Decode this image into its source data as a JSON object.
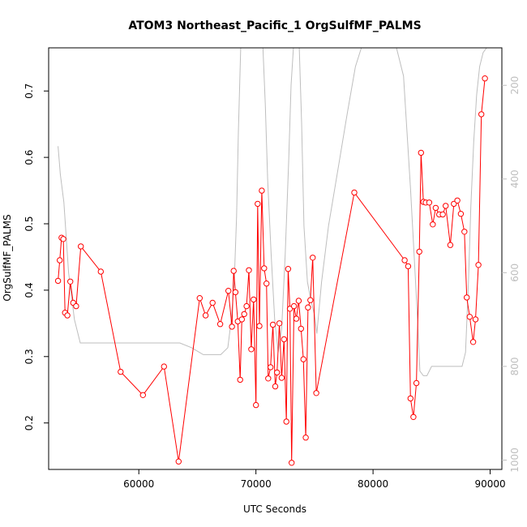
{
  "chart_data": {
    "type": "line",
    "title": "ATOM3 Northeast_Pacific_1 OrgSulfMF_PALMS",
    "xlabel": "UTC Seconds",
    "ylabel": "OrgSulfMF_PALMS",
    "xlim": [
      52300,
      91000
    ],
    "ylim": [
      0.13,
      0.765
    ],
    "x_ticks": [
      60000,
      70000,
      80000,
      90000
    ],
    "x_tick_labels": [
      "60000",
      "70000",
      "80000",
      "90000"
    ],
    "y_ticks": [
      0.2,
      0.3,
      0.4,
      0.5,
      0.6,
      0.7
    ],
    "y_tick_labels": [
      "0.2",
      "0.3",
      "0.4",
      "0.5",
      "0.6",
      "0.7"
    ],
    "y2_lim": [
      1020,
      120
    ],
    "y2_ticks": [
      200,
      400,
      600,
      800,
      1000
    ],
    "y2_tick_labels": [
      "200",
      "400",
      "600",
      "800",
      "1000"
    ],
    "grid": false,
    "colors": {
      "series": "#ff0000",
      "secondary": "#bebebe",
      "axis": "#000000"
    },
    "series": [
      {
        "marker": "open-circle",
        "color": "#ff0000",
        "x": [
          53100,
          53250,
          53400,
          53550,
          53700,
          53900,
          54150,
          54400,
          54650,
          55050,
          56750,
          58450,
          60350,
          62150,
          63400,
          65200,
          65700,
          66300,
          66950,
          67650,
          67950,
          68100,
          68250,
          68450,
          68650,
          68800,
          69000,
          69200,
          69400,
          69600,
          69800,
          70000,
          70150,
          70300,
          70500,
          70700,
          70900,
          71050,
          71250,
          71450,
          71650,
          71800,
          72000,
          72200,
          72400,
          72600,
          72750,
          72900,
          73050,
          73250,
          73450,
          73650,
          73850,
          74050,
          74250,
          74450,
          74650,
          74850,
          75150,
          78400,
          82700,
          83000,
          83200,
          83450,
          83700,
          83950,
          84100,
          84300,
          84500,
          84800,
          85100,
          85350,
          85650,
          85950,
          86200,
          86600,
          86900,
          87200,
          87500,
          87800,
          88000,
          88250,
          88550,
          88750,
          89000,
          89250,
          89550
        ],
        "values": [
          0.414,
          0.445,
          0.479,
          0.477,
          0.366,
          0.362,
          0.413,
          0.381,
          0.376,
          0.466,
          0.428,
          0.277,
          0.242,
          0.285,
          0.142,
          0.388,
          0.362,
          0.381,
          0.349,
          0.399,
          0.345,
          0.429,
          0.397,
          0.353,
          0.265,
          0.356,
          0.364,
          0.376,
          0.43,
          0.311,
          0.386,
          0.227,
          0.53,
          0.346,
          0.55,
          0.433,
          0.41,
          0.267,
          0.284,
          0.348,
          0.255,
          0.276,
          0.35,
          0.268,
          0.326,
          0.202,
          0.432,
          0.372,
          0.14,
          0.376,
          0.357,
          0.384,
          0.342,
          0.296,
          0.178,
          0.374,
          0.385,
          0.449,
          0.245,
          0.547,
          0.445,
          0.436,
          0.237,
          0.209,
          0.26,
          0.458,
          0.607,
          0.533,
          0.532,
          0.532,
          0.499,
          0.524,
          0.514,
          0.514,
          0.527,
          0.468,
          0.53,
          0.535,
          0.515,
          0.488,
          0.389,
          0.36,
          0.322,
          0.356,
          0.438,
          0.665,
          0.719
        ]
      },
      {
        "marker": "none",
        "color": "#bebebe",
        "axis": "right",
        "x": [
          53100,
          53300,
          53600,
          54000,
          54500,
          55000,
          56000,
          58000,
          60000,
          62000,
          63500,
          64500,
          65500,
          67000,
          67600,
          67900,
          68150,
          68350,
          68500,
          68700,
          68900,
          69100,
          69300,
          69600,
          69800,
          70000,
          70200,
          70400,
          70600,
          70800,
          71000,
          71300,
          71600,
          71900,
          72200,
          72500,
          72800,
          73000,
          73200,
          73400,
          73700,
          73900,
          74100,
          74400,
          74700,
          75000,
          75200,
          75600,
          76200,
          77000,
          77800,
          78500,
          79000,
          80000,
          81000,
          82000,
          82600,
          82900,
          83200,
          83500,
          83800,
          84000,
          84300,
          84600,
          85000,
          85500,
          86000,
          86700,
          87200,
          87600,
          87900,
          88150,
          88350,
          88600,
          88850,
          89100,
          89400,
          89700
        ],
        "values": [
          330,
          390,
          450,
          600,
          700,
          750,
          750,
          750,
          750,
          750,
          750,
          760,
          775,
          775,
          760,
          700,
          620,
          480,
          300,
          120,
          120,
          120,
          120,
          120,
          120,
          120,
          120,
          120,
          120,
          240,
          400,
          560,
          700,
          770,
          720,
          560,
          360,
          200,
          120,
          120,
          120,
          280,
          500,
          620,
          660,
          690,
          730,
          620,
          500,
          380,
          260,
          160,
          120,
          120,
          120,
          120,
          180,
          300,
          420,
          560,
          700,
          810,
          820,
          820,
          800,
          800,
          800,
          800,
          800,
          800,
          770,
          620,
          460,
          320,
          220,
          160,
          130,
          120
        ]
      }
    ]
  }
}
